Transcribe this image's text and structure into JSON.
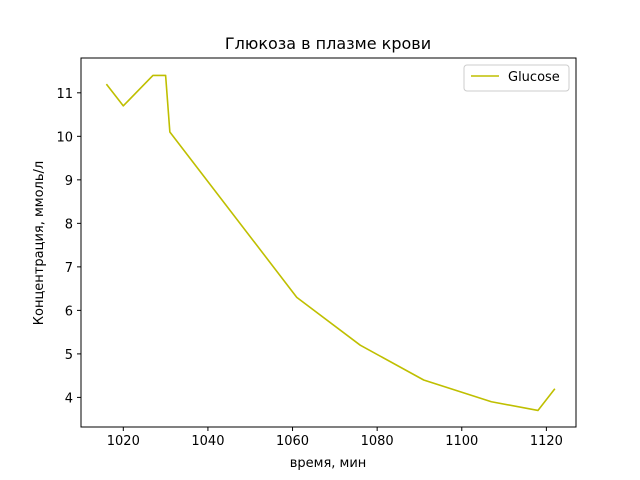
{
  "chart_data": {
    "type": "line",
    "title": "Глюкоза в плазме крови",
    "xlabel": "время, мин",
    "ylabel": "Концентрация, ммоль/л",
    "xlim": [
      1010,
      1127
    ],
    "ylim": [
      3.32,
      11.8
    ],
    "x_ticks": [
      1020,
      1040,
      1060,
      1080,
      1100,
      1120
    ],
    "y_ticks": [
      4,
      5,
      6,
      7,
      8,
      9,
      10,
      11
    ],
    "grid": false,
    "legend_position": "top-right",
    "series": [
      {
        "name": "Glucose",
        "color": "#bfbf00",
        "x": [
          1016,
          1020,
          1027,
          1030,
          1031,
          1061,
          1076,
          1091,
          1107,
          1118,
          1122
        ],
        "values": [
          11.2,
          10.7,
          11.4,
          11.4,
          10.1,
          6.3,
          5.2,
          4.4,
          3.9,
          3.7,
          4.2
        ]
      }
    ]
  }
}
